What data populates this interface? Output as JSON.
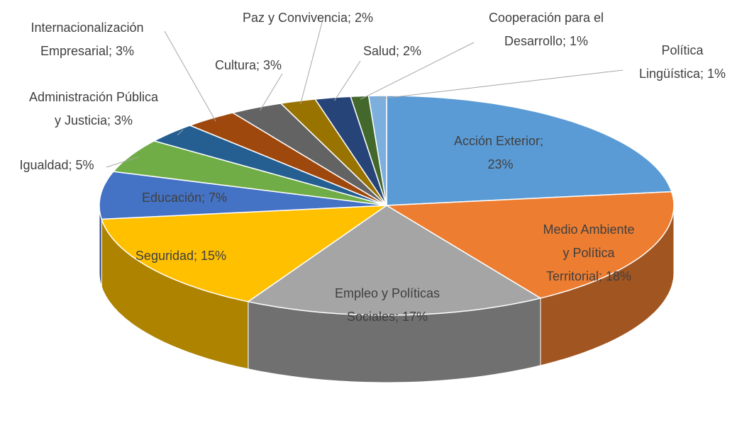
{
  "chart_data": {
    "type": "pie3d",
    "categories": [
      "Acción Exterior;",
      "Medio Ambiente y Política Territorial;",
      "Empleo y Políticas Sociales;",
      "Seguridad;",
      "Educación;",
      "Igualdad;",
      "Administración Pública y Justicia;",
      "Internacionalización Empresarial;",
      "Cultura;",
      "Paz y Convivencia;",
      "Salud;",
      "Cooperación para el Desarrollo;",
      "Política Lingüística;"
    ],
    "values": [
      23,
      18,
      17,
      15,
      7,
      5,
      3,
      3,
      3,
      2,
      2,
      1,
      1
    ],
    "value_labels": [
      "23%",
      "18%",
      "17%",
      "15%",
      "7%",
      "5%",
      "3%",
      "3%",
      "3%",
      "2%",
      "2%",
      "1%",
      "1%"
    ],
    "colors": [
      "#5b9bd5",
      "#ed7d31",
      "#a5a5a5",
      "#ffc000",
      "#4472c4",
      "#70ad47",
      "#255e91",
      "#9e480e",
      "#636363",
      "#997300",
      "#264478",
      "#43682b",
      "#7cafdd"
    ]
  }
}
